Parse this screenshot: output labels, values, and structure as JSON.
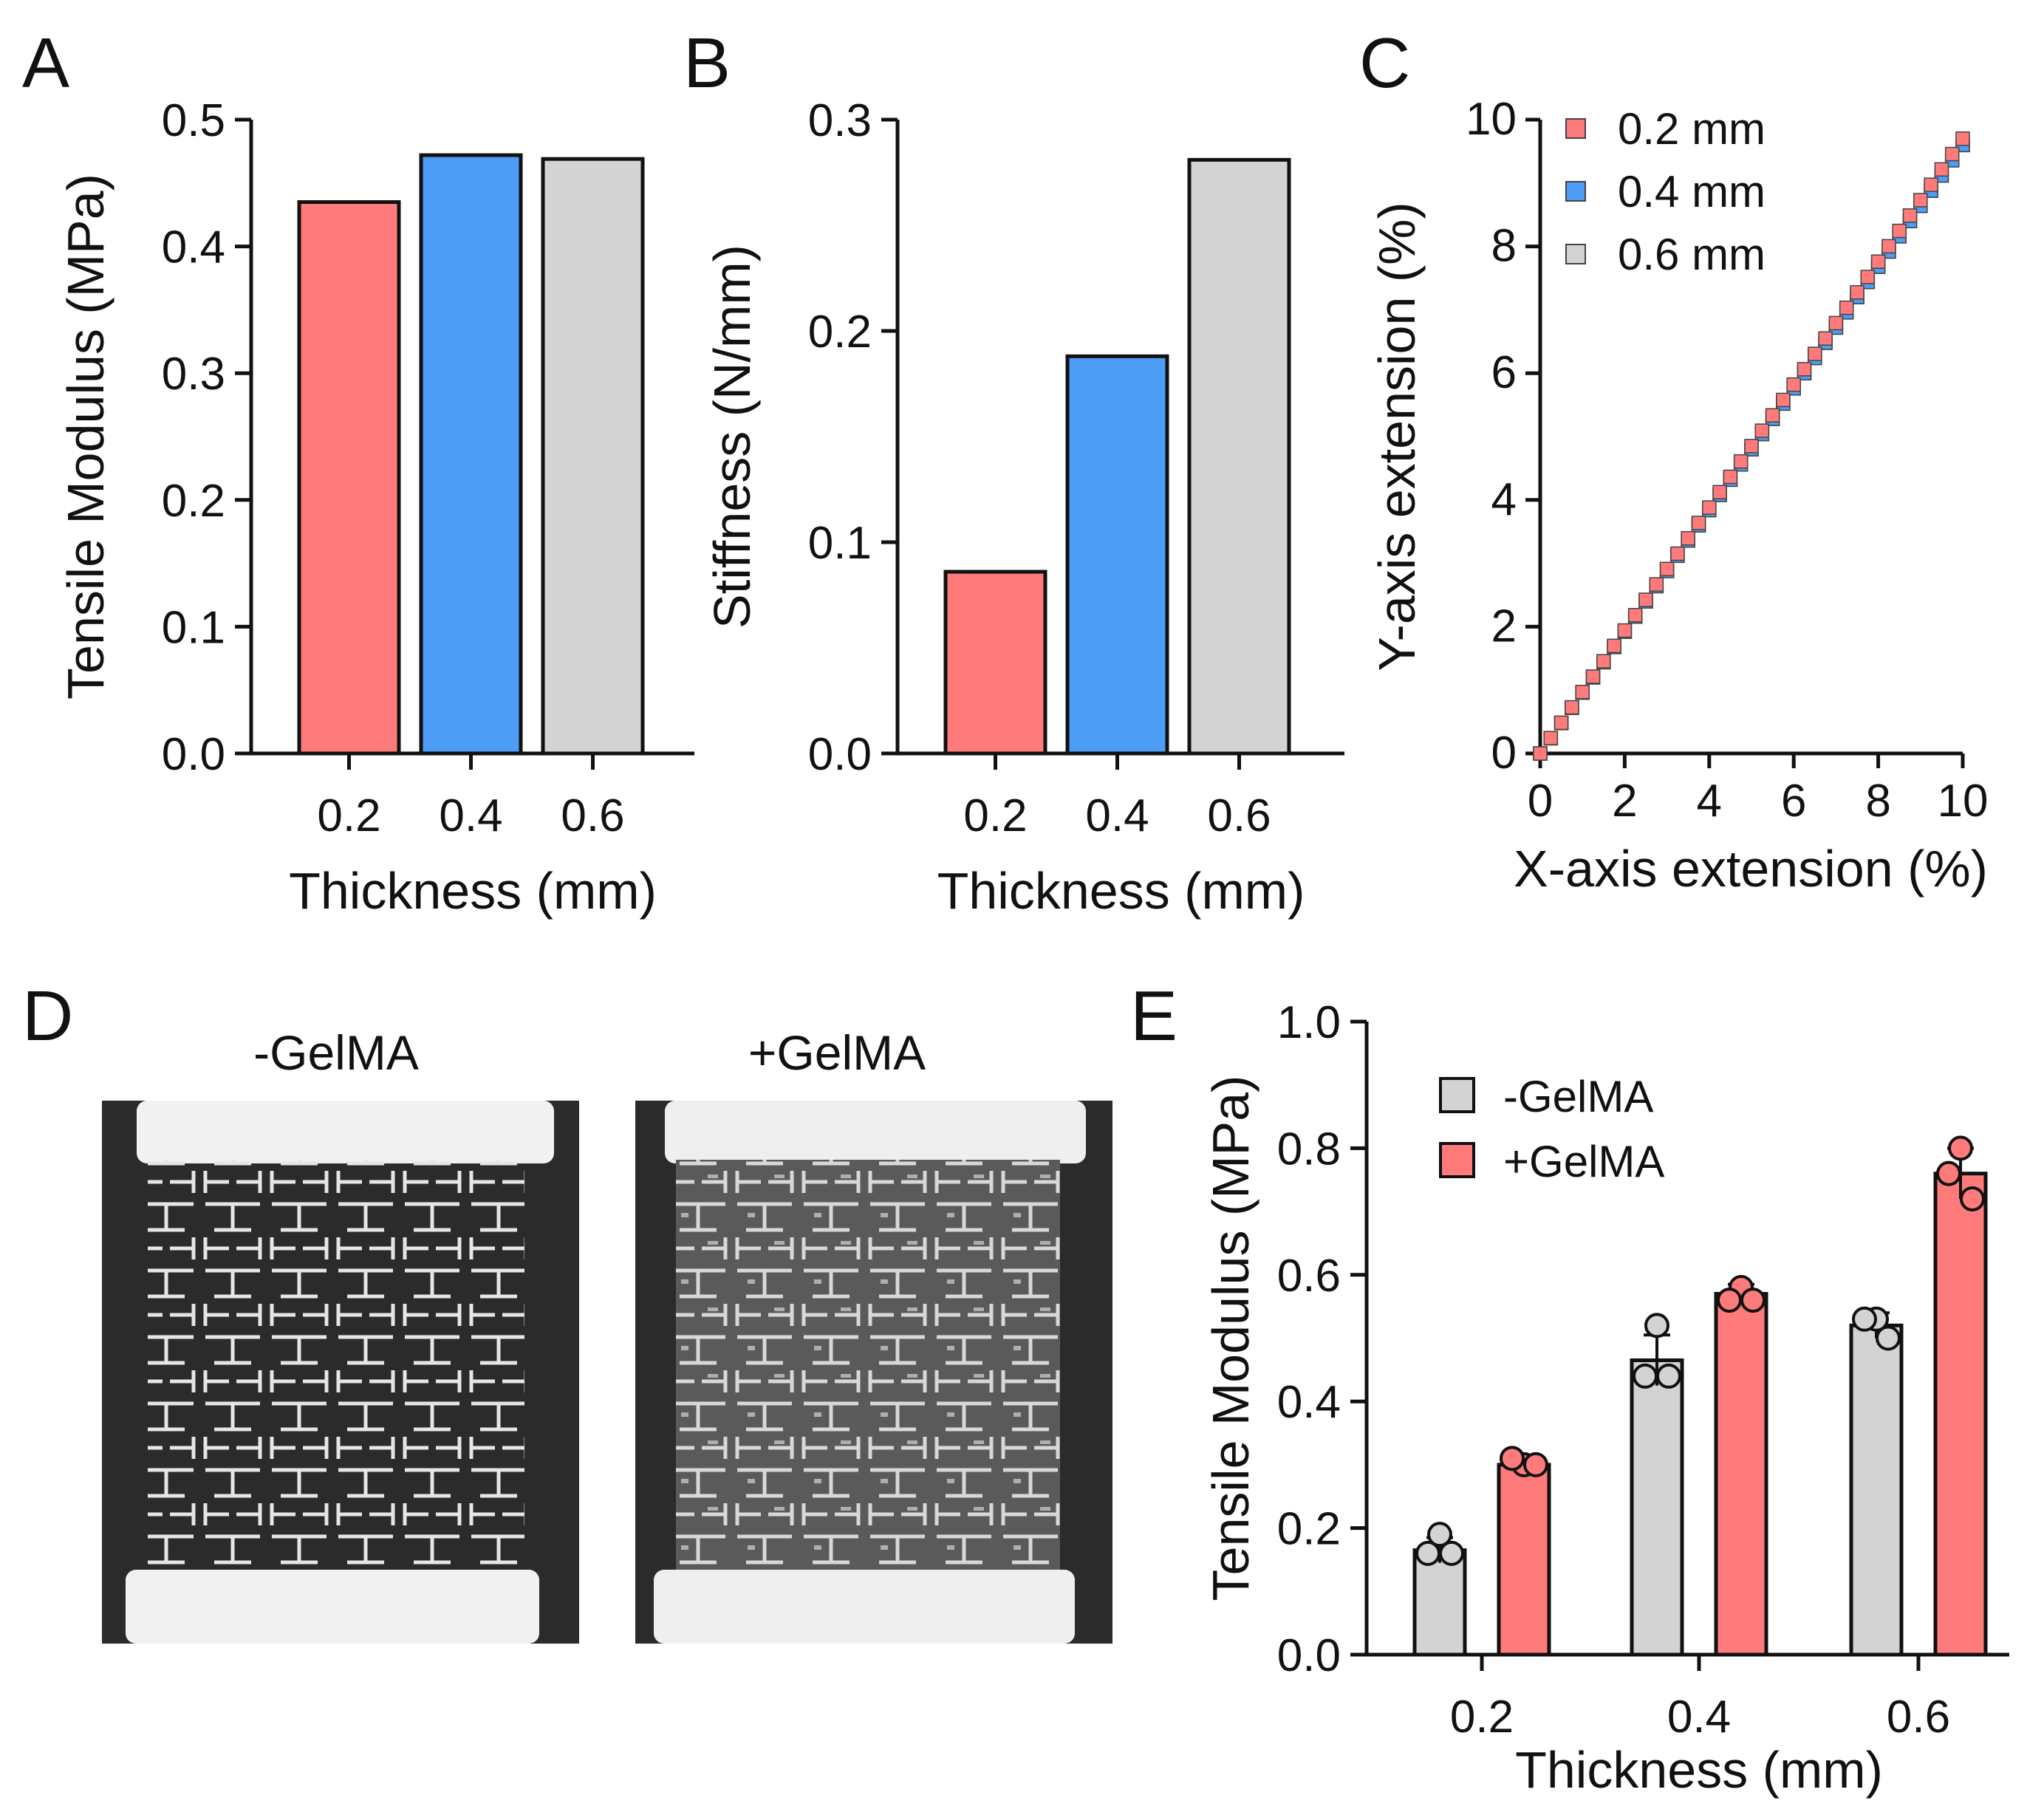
{
  "panels": {
    "A": "A",
    "B": "B",
    "C": "C",
    "D": "D",
    "E": "E"
  },
  "colors": {
    "red": "#ff7b7b",
    "blue": "#4d9cf6",
    "gray": "#d3d3d3",
    "photo_bg": "#2b2b2b",
    "grip": "#f1f1f1",
    "lattice": "#e8e8e8"
  },
  "photos": {
    "left_label": "-GelMA",
    "right_label": "+GelMA"
  },
  "chart_data": [
    {
      "id": "A",
      "type": "bar",
      "categories": [
        "0.2",
        "0.4",
        "0.6"
      ],
      "values": [
        0.435,
        0.472,
        0.469
      ],
      "colors": [
        "red",
        "blue",
        "gray"
      ],
      "title": "",
      "xlabel": "Thickness (mm)",
      "ylabel": "Tensile Modulus (MPa)",
      "ylim": [
        0,
        0.5
      ],
      "yticks": [
        0.0,
        0.1,
        0.2,
        0.3,
        0.4,
        0.5
      ],
      "ytick_labels": [
        "0.0",
        "0.1",
        "0.2",
        "0.3",
        "0.4",
        "0.5"
      ]
    },
    {
      "id": "B",
      "type": "bar",
      "categories": [
        "0.2",
        "0.4",
        "0.6"
      ],
      "values": [
        0.086,
        0.188,
        0.281
      ],
      "colors": [
        "red",
        "blue",
        "gray"
      ],
      "title": "",
      "xlabel": "Thickness (mm)",
      "ylabel": "Stiffness (N/mm)",
      "ylim": [
        0,
        0.3
      ],
      "yticks": [
        0.0,
        0.1,
        0.2,
        0.3
      ],
      "ytick_labels": [
        "0.0",
        "0.1",
        "0.2",
        "0.3"
      ]
    },
    {
      "id": "C",
      "type": "scatter",
      "xlabel": "X-axis extension (%)",
      "ylabel": "Y-axis extension (%)",
      "xlim": [
        0,
        10
      ],
      "ylim": [
        0,
        10
      ],
      "xticks": [
        0,
        2,
        4,
        6,
        8,
        10
      ],
      "yticks": [
        0,
        2,
        4,
        6,
        8,
        10
      ],
      "legend_position": "top-left",
      "series": [
        {
          "name": "0.6 mm",
          "color": "gray",
          "x_start": 0,
          "x_end": 10,
          "y_start": 0,
          "y_end": 9.6,
          "n": 41
        },
        {
          "name": "0.4 mm",
          "color": "blue",
          "x_start": 0,
          "x_end": 10,
          "y_start": 0,
          "y_end": 9.6,
          "n": 41
        },
        {
          "name": "0.2 mm",
          "color": "red",
          "x_start": 0,
          "x_end": 10,
          "y_start": 0,
          "y_end": 9.7,
          "n": 41
        }
      ],
      "legend": [
        "0.2 mm",
        "0.4 mm",
        "0.6 mm"
      ]
    },
    {
      "id": "E",
      "type": "bar",
      "categories": [
        "0.2",
        "0.4",
        "0.6"
      ],
      "xlabel": "Thickness (mm)",
      "ylabel": "Tensile Modulus (MPa)",
      "ylim": [
        0,
        1.0
      ],
      "yticks": [
        0.0,
        0.2,
        0.4,
        0.6,
        0.8,
        1.0
      ],
      "ytick_labels": [
        "0.0",
        "0.2",
        "0.4",
        "0.6",
        "0.8",
        "1.0"
      ],
      "legend_position": "top-left",
      "series": [
        {
          "name": "-GelMA",
          "color": "gray",
          "values": [
            0.165,
            0.465,
            0.52
          ],
          "sd": [
            0.02,
            0.04,
            0.02
          ],
          "points": [
            [
              0.19,
              0.16,
              0.16
            ],
            [
              0.52,
              0.44,
              0.44
            ],
            [
              0.53,
              0.53,
              0.5
            ]
          ]
        },
        {
          "name": "+GelMA",
          "color": "red",
          "values": [
            0.3,
            0.57,
            0.76
          ],
          "sd": [
            0.01,
            0.015,
            0.04
          ],
          "points": [
            [
              0.3,
              0.31,
              0.3
            ],
            [
              0.58,
              0.56,
              0.56
            ],
            [
              0.8,
              0.76,
              0.72
            ]
          ]
        }
      ]
    }
  ]
}
